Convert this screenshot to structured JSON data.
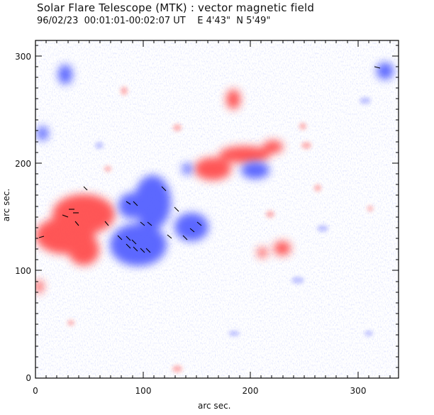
{
  "figure": {
    "title": "Solar Flare Telescope (MTK) : vector magnetic field",
    "subtitle": "96/02/23  00:01:01-00:02:07 UT    E 4'43\"  N 5'49\"",
    "xlabel": "arc sec.",
    "ylabel": "arc sec.",
    "x_range": [
      0,
      340
    ],
    "y_range": [
      0,
      320
    ],
    "x_ticks": [
      "0",
      "100",
      "200",
      "300"
    ],
    "y_ticks": [
      "0",
      "100",
      "200",
      "300"
    ],
    "colors": {
      "positive": "#ff4b4b",
      "negative": "#4b5bff",
      "vectors": "#000000"
    }
  }
}
